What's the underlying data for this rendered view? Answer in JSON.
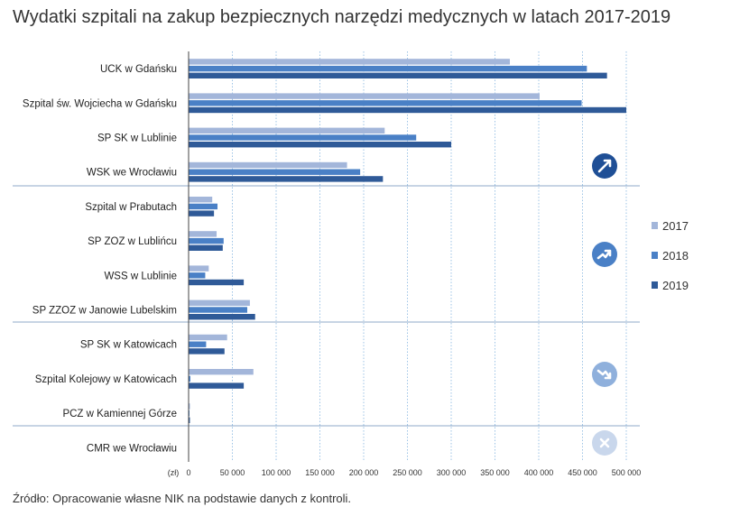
{
  "title": "Wydatki szpitali na zakup bezpiecznych narzędzi medycznych w latach 2017-2019",
  "source": "Źródło: Opracowanie własne NIK na podstawie danych z kontroli.",
  "chart_data": {
    "type": "bar",
    "orientation": "horizontal",
    "title": "Wydatki szpitali na zakup bezpiecznych narzędzi medycznych w latach 2017-2019",
    "xlabel": "",
    "ylabel": "",
    "x_unit_label": "(zł)",
    "xlim": [
      0,
      500000
    ],
    "x_ticks": [
      0,
      50000,
      100000,
      150000,
      200000,
      250000,
      300000,
      350000,
      400000,
      450000,
      500000
    ],
    "x_tick_labels": [
      "0",
      "50 000",
      "100 000",
      "150 000",
      "200 000",
      "250 000",
      "300 000",
      "350 000",
      "400 000",
      "450 000",
      "500 000"
    ],
    "grid": "vertical dotted",
    "legend_position": "right",
    "categories": [
      "UCK w Gdańsku",
      "Szpital św. Wojciecha w Gdańsku",
      "SP SK w Lublinie",
      "WSK we Wrocławiu",
      "Szpital w Prabutach",
      "SP ZOZ w Lublińcu",
      "WSS w Lublinie",
      "SP ZZOZ w Janowie Lubelskim",
      "SP SK w Katowicach",
      "Szpital Kolejowy w Katowicach",
      "PCZ w Kamiennej Górze",
      "CMR we Wrocławiu"
    ],
    "series": [
      {
        "name": "2017",
        "color": "#a3b6da",
        "values": [
          367000,
          401000,
          224000,
          181000,
          27000,
          32000,
          23000,
          70000,
          44000,
          74000,
          1500,
          0
        ]
      },
      {
        "name": "2018",
        "color": "#4a80c6",
        "values": [
          455000,
          449000,
          260000,
          196000,
          33000,
          40000,
          19000,
          67000,
          20000,
          2000,
          1000,
          0
        ]
      },
      {
        "name": "2019",
        "color": "#2f5a98",
        "values": [
          478000,
          500000,
          300000,
          222000,
          29000,
          39000,
          63000,
          76000,
          41000,
          63000,
          1500,
          0
        ]
      }
    ],
    "groups": [
      {
        "icon": "trend-up-icon",
        "color": "#1f4f96"
      },
      {
        "icon": "trend-up-growing-icon",
        "color": "#4a80c6"
      },
      {
        "icon": "trend-down-icon",
        "color": "#8fb0dc"
      },
      {
        "icon": "no-purchase-icon",
        "color": "#c9d7ec"
      }
    ]
  }
}
